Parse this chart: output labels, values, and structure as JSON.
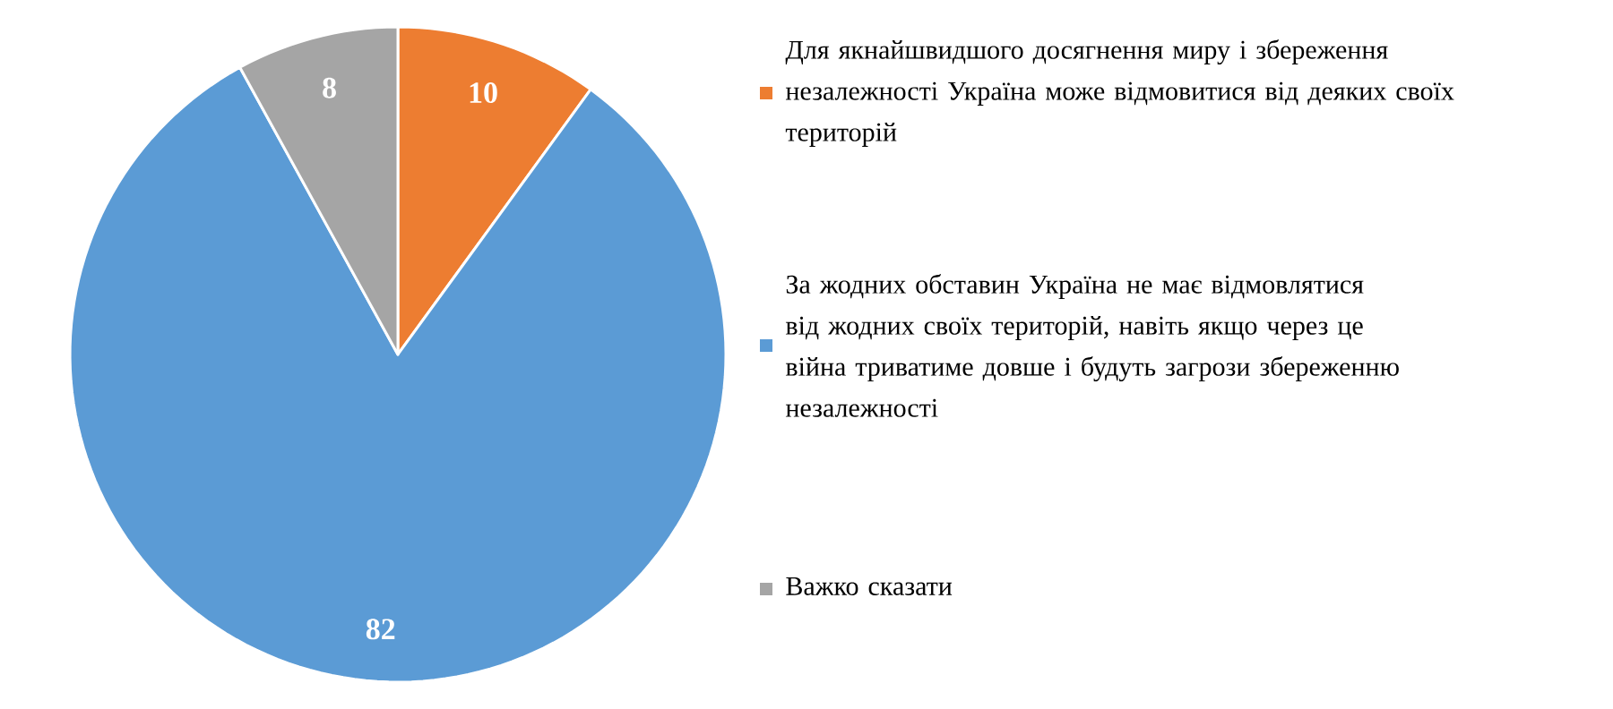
{
  "chart_data": {
    "type": "pie",
    "categories": [
      "Для якнайшвидшого досягнення миру і збереження незалежності Україна може відмовитися від деяких своїх територій",
      "За жодних обставин Україна не має відмовлятися від жодних своїх територій, навіть якщо через це війна триватиме довше і будуть загрози збереженню незалежності",
      "Важко сказати"
    ],
    "values": [
      10,
      82,
      8
    ],
    "colors": [
      "#ed7d31",
      "#5b9bd5",
      "#a5a5a5"
    ],
    "data_labels": true,
    "legend": "right"
  }
}
